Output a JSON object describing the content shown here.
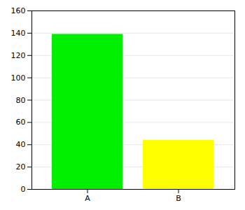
{
  "chart_data": {
    "type": "bar",
    "categories": [
      "A",
      "B"
    ],
    "values": [
      139,
      44
    ],
    "colors": [
      "#00ee00",
      "#ffff00"
    ],
    "ylim": [
      0,
      160
    ],
    "yticks": [
      0,
      20,
      40,
      60,
      80,
      100,
      120,
      140,
      160
    ],
    "grid": true
  }
}
